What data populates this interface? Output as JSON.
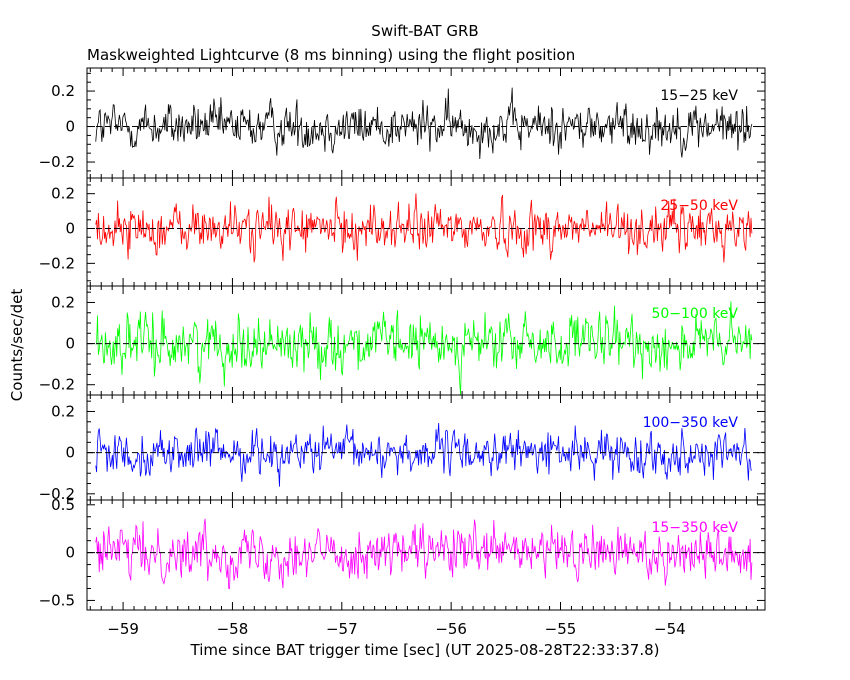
{
  "chart_data": {
    "type": "line",
    "title": "Swift-BAT GRB",
    "subtitle": "Maskweighted Lightcurve (8 ms binning) using the flight position",
    "xlabel": "Time since BAT trigger time [sec] (UT 2025-08-28T22:33:37.8)",
    "ylabel": "Counts/sec/det",
    "xlim": [
      -59.33,
      -53.13
    ],
    "x_ticks": [
      -59,
      -58,
      -57,
      -56,
      -55,
      -54
    ],
    "x_tick_labels": [
      "−59",
      "−58",
      "−57",
      "−56",
      "−55",
      "−54"
    ],
    "data_x_range": [
      -59.25,
      -53.25
    ],
    "bin_size_sec": 0.008,
    "panels": [
      {
        "name": "15-25 keV",
        "label": "15−25 keV",
        "color": "#000000",
        "ylim": [
          -0.29,
          0.33
        ],
        "y_ticks": [
          -0.2,
          0,
          0.2
        ],
        "y_tick_labels": [
          "−0.2",
          "0",
          "0.2"
        ],
        "noise_amplitude": 0.085
      },
      {
        "name": "25-50 keV",
        "label": "25−50 keV",
        "color": "#ff0000",
        "ylim": [
          -0.33,
          0.29
        ],
        "y_ticks": [
          -0.2,
          0,
          0.2
        ],
        "y_tick_labels": [
          "−0.2",
          "0",
          "0.2"
        ],
        "noise_amplitude": 0.09
      },
      {
        "name": "50-100 keV",
        "label": "50−100 keV",
        "color": "#00ff00",
        "ylim": [
          -0.25,
          0.28
        ],
        "y_ticks": [
          -0.2,
          0,
          0.2
        ],
        "y_tick_labels": [
          "−0.2",
          "0",
          "0.2"
        ],
        "noise_amplitude": 0.085
      },
      {
        "name": "100-350 keV",
        "label": "100−350 keV",
        "color": "#0000ff",
        "ylim": [
          -0.23,
          0.28
        ],
        "y_ticks": [
          -0.2,
          0,
          0.2
        ],
        "y_tick_labels": [
          "−0.2",
          "0",
          "0.2"
        ],
        "noise_amplitude": 0.065
      },
      {
        "name": "15-350 keV",
        "label": "15−350 keV",
        "color": "#ff00ff",
        "ylim": [
          -0.6,
          0.55
        ],
        "y_ticks": [
          -0.5,
          0,
          0.5
        ],
        "y_tick_labels": [
          "−0.5",
          "0",
          "0.5"
        ],
        "noise_amplitude": 0.17
      }
    ]
  }
}
